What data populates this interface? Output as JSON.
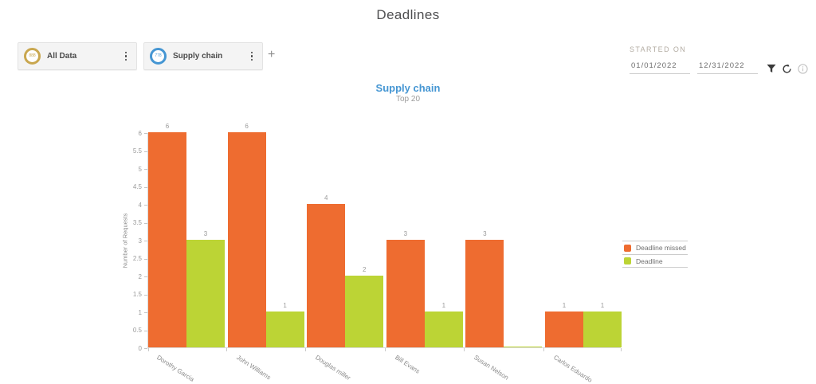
{
  "page": {
    "title": "Deadlines"
  },
  "filters": {
    "cards": [
      {
        "label": "All Data",
        "count": "888",
        "ring_color": "#c9a74f"
      },
      {
        "label": "Supply chain",
        "count": "778",
        "ring_color": "#4596d3"
      }
    ],
    "add_label": "+"
  },
  "date_range": {
    "label": "STARTED ON",
    "start_value": "01/01/2022",
    "end_value": "12/31/2022"
  },
  "icons": {
    "card_menu": "kebab-menu-icon",
    "add": "plus-icon",
    "filter": "filter-funnel-icon",
    "refresh": "refresh-icon",
    "info": "info-icon"
  },
  "chart": {
    "title": "Supply chain",
    "subtitle": "Top 20",
    "title_color": "#4596d3"
  },
  "chart_data": {
    "type": "bar",
    "title": "Supply chain",
    "subtitle": "Top 20",
    "categories": [
      "Dorothy Garcia",
      "John Williams",
      "Douglas miller",
      "Bill Evans",
      "Susan Nelson",
      "Carlos Eduardo"
    ],
    "series": [
      {
        "name": "Deadline missed",
        "color": "#ee6c30",
        "values": [
          6,
          6,
          4,
          3,
          3,
          1
        ]
      },
      {
        "name": "Deadline",
        "color": "#bcd435",
        "values": [
          3,
          1,
          2,
          1,
          0,
          1
        ]
      }
    ],
    "xlabel": "",
    "ylabel": "Number of Requests",
    "ylim": [
      0,
      6
    ],
    "ytick_step": 0.5,
    "yticks": [
      0,
      0.5,
      1,
      1.5,
      2,
      2.5,
      3,
      3.5,
      4,
      4.5,
      5,
      5.5,
      6
    ],
    "legend": [
      "Deadline missed",
      "Deadline"
    ],
    "legend_position": "right",
    "grid": false,
    "bar_value_labels": true
  }
}
